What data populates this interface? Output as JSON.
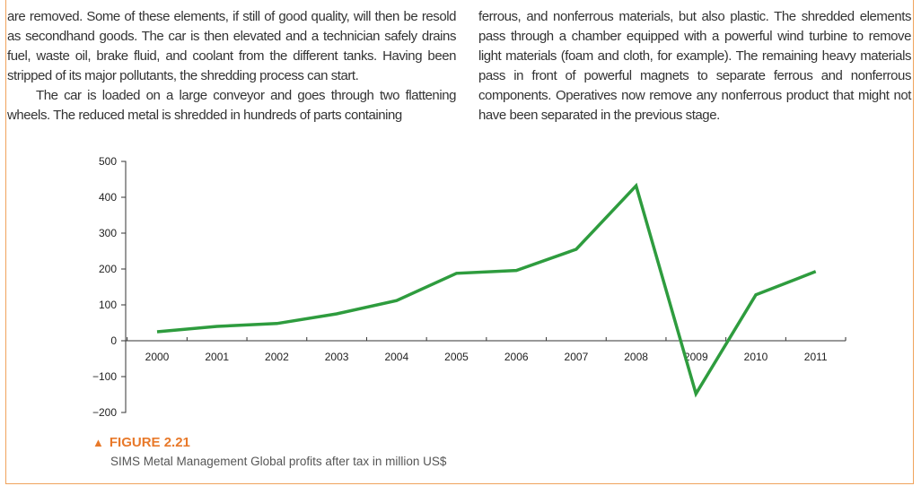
{
  "text": {
    "col1_p1": "are removed. Some of these elements, if still of good quality, will then be resold as secondhand goods. The car is then elevated and a technician safely drains fuel, waste oil, brake fluid, and coolant from the different tanks. Having been stripped of its major pollutants, the shredding process can start.",
    "col1_p2": "The car is loaded on a large conveyor and goes through two flattening wheels. The reduced metal is shredded in hundreds of parts containing",
    "col2_p1": "ferrous, and nonferrous materials, but also plastic. The shredded elements pass through a chamber equipped with a powerful wind turbine to remove light materials (foam and cloth, for example). The remaining heavy materials pass in front of powerful magnets to separate ferrous and nonferrous components. Operatives now remove any nonferrous product that might not have been separated in the previous stage."
  },
  "figure": {
    "marker": "▲",
    "title": "FIGURE 2.21",
    "subtitle": "SIMS Metal Management Global profits after tax in million US$"
  },
  "colors": {
    "line": "#2e9c3e",
    "axis": "#333333",
    "frame": "#f0a35c",
    "caption": "#e8792a"
  },
  "chart_data": {
    "type": "line",
    "title": "",
    "xlabel": "",
    "ylabel": "",
    "categories": [
      "2000",
      "2001",
      "2002",
      "2003",
      "2004",
      "2005",
      "2006",
      "2007",
      "2008",
      "2009",
      "2010",
      "2011"
    ],
    "series": [
      {
        "name": "Profits after tax",
        "values": [
          25,
          40,
          48,
          75,
          112,
          188,
          196,
          255,
          432,
          -148,
          128,
          193
        ]
      }
    ],
    "yticks": [
      500,
      400,
      300,
      200,
      100,
      0,
      -100,
      -200
    ],
    "ytick_labels": [
      "500",
      "400",
      "300",
      "200",
      "100",
      "0",
      "−100",
      "−200"
    ],
    "ylim": [
      -200,
      500
    ],
    "grid": false,
    "legend": "none"
  }
}
